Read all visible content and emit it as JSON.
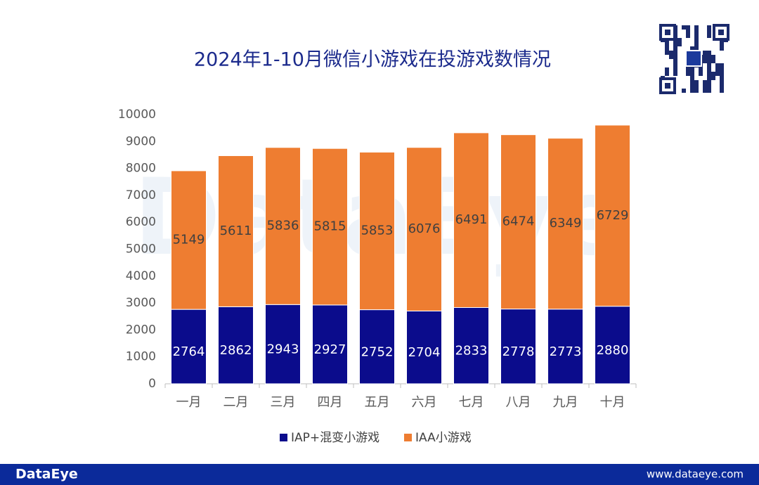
{
  "chart_data": {
    "type": "stacked_bar",
    "title": "2024年1-10月微信小游戏在投游戏数情况",
    "categories": [
      "一月",
      "二月",
      "三月",
      "四月",
      "五月",
      "六月",
      "七月",
      "八月",
      "九月",
      "十月"
    ],
    "series": [
      {
        "name": "IAP+混变小游戏",
        "color": "#0b0c8c",
        "values": [
          2764,
          2862,
          2943,
          2927,
          2752,
          2704,
          2833,
          2778,
          2773,
          2880
        ]
      },
      {
        "name": "IAA小游戏",
        "color": "#ee7d31",
        "values": [
          5149,
          5611,
          5836,
          5815,
          5853,
          6076,
          6491,
          6474,
          6349,
          6729
        ]
      }
    ],
    "ylim": [
      0,
      10000
    ],
    "yticks": [
      0,
      1000,
      2000,
      3000,
      4000,
      5000,
      6000,
      7000,
      8000,
      9000,
      10000
    ],
    "grid": false,
    "legend": "bottom"
  },
  "watermark": "DataEye",
  "footer": {
    "brand": "DataEye",
    "url": "www.dataeye.com"
  }
}
